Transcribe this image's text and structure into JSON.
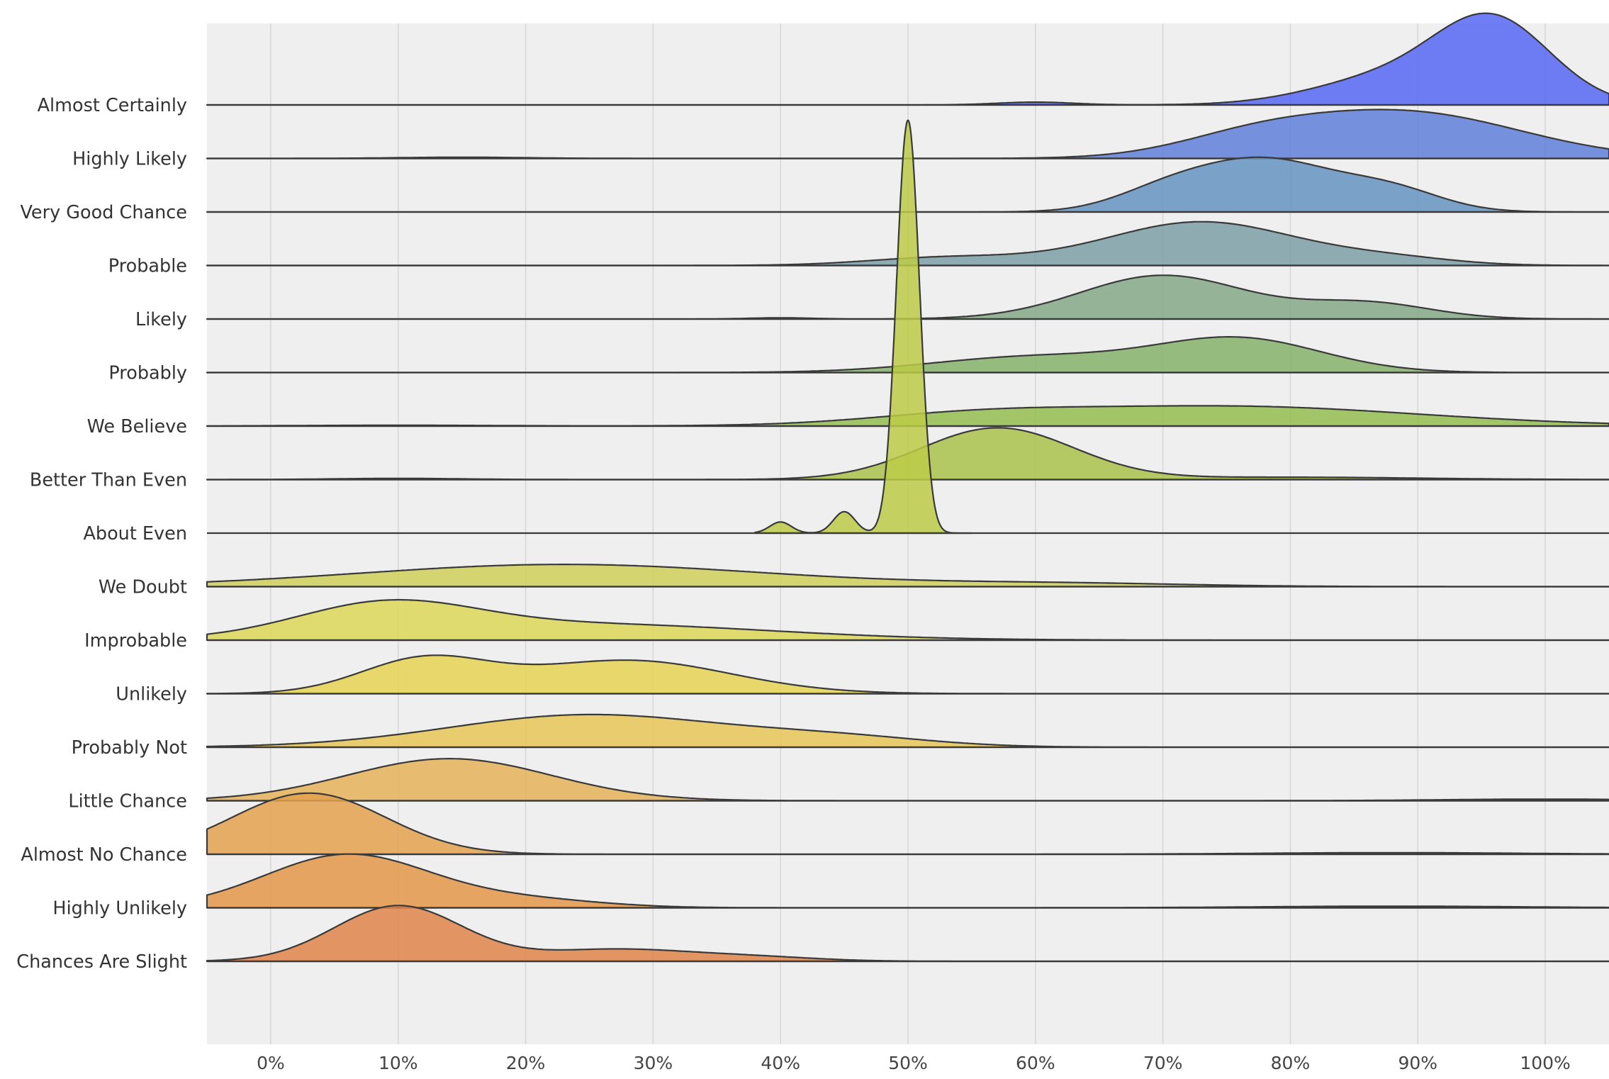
{
  "chart_data": {
    "type": "ridgeline",
    "title": "",
    "xlabel": "",
    "ylabel": "",
    "xlim": [
      -5,
      105
    ],
    "x_ticks": [
      {
        "value": 0,
        "label": "0%"
      },
      {
        "value": 10,
        "label": "10%"
      },
      {
        "value": 20,
        "label": "20%"
      },
      {
        "value": 30,
        "label": "30%"
      },
      {
        "value": 40,
        "label": "40%"
      },
      {
        "value": 50,
        "label": "50%"
      },
      {
        "value": 60,
        "label": "60%"
      },
      {
        "value": 70,
        "label": "70%"
      },
      {
        "value": 80,
        "label": "80%"
      },
      {
        "value": 90,
        "label": "90%"
      },
      {
        "value": 100,
        "label": "100%"
      }
    ],
    "grid": true,
    "ridges": [
      {
        "label": "Almost Certainly",
        "color": "#5667f3",
        "peaks": [
          [
            96,
            1.0,
            4.5
          ],
          [
            88,
            0.35,
            6
          ],
          [
            60,
            0.035,
            3
          ]
        ]
      },
      {
        "label": "Highly Likely",
        "color": "#5f80d9",
        "peaks": [
          [
            89,
            0.58,
            9
          ],
          [
            77,
            0.2,
            6
          ],
          [
            15,
            0.015,
            5
          ]
        ]
      },
      {
        "label": "Very Good Chance",
        "color": "#6594c2",
        "peaks": [
          [
            78,
            0.65,
            5.5
          ],
          [
            88,
            0.25,
            4
          ],
          [
            70,
            0.2,
            4
          ]
        ]
      },
      {
        "label": "Probable",
        "color": "#7c9fa7",
        "peaks": [
          [
            73,
            0.55,
            7.5
          ],
          [
            53,
            0.1,
            6
          ],
          [
            88,
            0.08,
            5
          ]
        ]
      },
      {
        "label": "Likely",
        "color": "#84a887",
        "peaks": [
          [
            70,
            0.55,
            6.5
          ],
          [
            86,
            0.2,
            5
          ],
          [
            40,
            0.015,
            2.5
          ]
        ]
      },
      {
        "label": "Probably",
        "color": "#85b26b",
        "peaks": [
          [
            76,
            0.42,
            6.5
          ],
          [
            60,
            0.2,
            8
          ]
        ]
      },
      {
        "label": "We Believe",
        "color": "#94bd4f",
        "peaks": [
          [
            75,
            0.25,
            15
          ],
          [
            55,
            0.1,
            8
          ],
          [
            10,
            0.01,
            8
          ]
        ]
      },
      {
        "label": "Better Than Even",
        "color": "#a9c14a",
        "peaks": [
          [
            57,
            0.65,
            6
          ],
          [
            80,
            0.03,
            10
          ],
          [
            10,
            0.015,
            5
          ]
        ]
      },
      {
        "label": "About Even",
        "color": "#bccb47",
        "peaks": [
          [
            50,
            5.2,
            0.9
          ],
          [
            45,
            0.27,
            0.85
          ],
          [
            40,
            0.14,
            0.85
          ]
        ],
        "xrange": [
          38,
          55
        ]
      },
      {
        "label": "We Doubt",
        "color": "#cfd05a",
        "peaks": [
          [
            23,
            0.28,
            16
          ],
          [
            62,
            0.04,
            10
          ]
        ]
      },
      {
        "label": "Improbable",
        "color": "#ddd757",
        "peaks": [
          [
            9,
            0.4,
            7
          ],
          [
            25,
            0.2,
            14
          ]
        ]
      },
      {
        "label": "Unlikely",
        "color": "#e6d353",
        "peaks": [
          [
            12,
            0.42,
            5
          ],
          [
            28,
            0.42,
            8
          ]
        ]
      },
      {
        "label": "Probably Not",
        "color": "#e8c657",
        "peaks": [
          [
            25,
            0.41,
            11
          ],
          [
            45,
            0.1,
            7
          ]
        ]
      },
      {
        "label": "Little Chance",
        "color": "#e5b35a",
        "peaks": [
          [
            14,
            0.53,
            8
          ],
          [
            100,
            0.02,
            8
          ]
        ]
      },
      {
        "label": "Almost No Chance",
        "color": "#e3a14d",
        "peaks": [
          [
            3,
            0.77,
            6
          ],
          [
            88,
            0.02,
            10
          ]
        ]
      },
      {
        "label": "Highly Unlikely",
        "color": "#e39649",
        "peaks": [
          [
            6,
            0.67,
            6.5
          ],
          [
            20,
            0.1,
            6
          ],
          [
            88,
            0.02,
            10
          ]
        ]
      },
      {
        "label": "Chances Are Slight",
        "color": "#e0844a",
        "peaks": [
          [
            10,
            0.7,
            5
          ],
          [
            27,
            0.15,
            6
          ],
          [
            38,
            0.05,
            5
          ]
        ]
      }
    ]
  }
}
